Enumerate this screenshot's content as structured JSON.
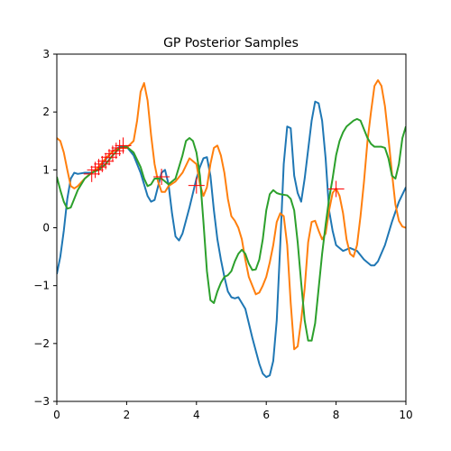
{
  "chart_data": {
    "type": "line",
    "title": "GP Posterior Samples",
    "xlabel": "",
    "ylabel": "",
    "xlim": [
      0,
      10
    ],
    "ylim": [
      -3,
      3
    ],
    "grid": false,
    "xticks": [
      0,
      2,
      4,
      6,
      8,
      10
    ],
    "xtick_labels": [
      "0",
      "2",
      "4",
      "6",
      "8",
      "10"
    ],
    "yticks": [
      -3,
      -2,
      -1,
      0,
      1,
      2,
      3
    ],
    "ytick_labels": [
      "−3",
      "−2",
      "−1",
      "0",
      "1",
      "2",
      "3"
    ],
    "series": [
      {
        "color": "#1f77b4",
        "x": [
          0,
          0.1,
          0.2,
          0.3,
          0.4,
          0.5,
          0.6,
          0.8,
          1.0,
          1.2,
          1.4,
          1.6,
          1.8,
          2.0,
          2.2,
          2.4,
          2.5,
          2.6,
          2.7,
          2.8,
          3.0,
          3.1,
          3.2,
          3.3,
          3.4,
          3.5,
          3.6,
          3.8,
          4.0,
          4.1,
          4.2,
          4.3,
          4.4,
          4.5,
          4.6,
          4.7,
          4.8,
          4.9,
          5.0,
          5.1,
          5.2,
          5.4,
          5.6,
          5.8,
          5.9,
          6.0,
          6.1,
          6.2,
          6.3,
          6.4,
          6.5,
          6.6,
          6.7,
          6.8,
          6.9,
          7.0,
          7.1,
          7.2,
          7.3,
          7.4,
          7.5,
          7.6,
          7.7,
          7.8,
          7.9,
          8.0,
          8.1,
          8.2,
          8.4,
          8.6,
          8.8,
          9.0,
          9.1,
          9.2,
          9.4,
          9.6,
          9.8,
          10.0
        ],
        "y": [
          -0.8,
          -0.5,
          -0.05,
          0.5,
          0.85,
          0.95,
          0.93,
          0.95,
          0.95,
          1.02,
          1.18,
          1.32,
          1.4,
          1.4,
          1.25,
          0.95,
          0.75,
          0.55,
          0.45,
          0.48,
          0.95,
          1.0,
          0.75,
          0.25,
          -0.15,
          -0.22,
          -0.1,
          0.35,
          0.85,
          1.05,
          1.2,
          1.22,
          0.9,
          0.3,
          -0.2,
          -0.55,
          -0.85,
          -1.1,
          -1.2,
          -1.22,
          -1.2,
          -1.4,
          -1.9,
          -2.35,
          -2.52,
          -2.58,
          -2.55,
          -2.3,
          -1.6,
          -0.3,
          1.1,
          1.75,
          1.72,
          0.9,
          0.6,
          0.45,
          0.85,
          1.35,
          1.85,
          2.18,
          2.15,
          1.85,
          1.2,
          0.3,
          -0.05,
          -0.3,
          -0.35,
          -0.4,
          -0.35,
          -0.4,
          -0.55,
          -0.65,
          -0.65,
          -0.58,
          -0.3,
          0.1,
          0.45,
          0.7
        ]
      },
      {
        "color": "#ff7f0e",
        "x": [
          0,
          0.1,
          0.2,
          0.3,
          0.4,
          0.5,
          0.6,
          0.8,
          1.0,
          1.2,
          1.4,
          1.6,
          1.8,
          2.0,
          2.2,
          2.3,
          2.4,
          2.5,
          2.6,
          2.7,
          2.8,
          2.9,
          3.0,
          3.1,
          3.2,
          3.4,
          3.6,
          3.8,
          4.0,
          4.1,
          4.2,
          4.3,
          4.4,
          4.5,
          4.6,
          4.7,
          4.8,
          4.9,
          5.0,
          5.1,
          5.2,
          5.3,
          5.4,
          5.5,
          5.6,
          5.7,
          5.8,
          5.9,
          6.0,
          6.1,
          6.2,
          6.3,
          6.4,
          6.5,
          6.6,
          6.7,
          6.8,
          6.9,
          7.0,
          7.1,
          7.2,
          7.3,
          7.4,
          7.5,
          7.6,
          7.7,
          7.8,
          7.9,
          8.0,
          8.1,
          8.2,
          8.3,
          8.4,
          8.5,
          8.6,
          8.7,
          8.8,
          8.9,
          9.0,
          9.1,
          9.2,
          9.3,
          9.4,
          9.5,
          9.6,
          9.7,
          9.8,
          9.9,
          10.0
        ],
        "y": [
          1.55,
          1.5,
          1.3,
          1.0,
          0.72,
          0.68,
          0.72,
          0.85,
          0.95,
          1.05,
          1.2,
          1.32,
          1.38,
          1.38,
          1.5,
          1.85,
          2.35,
          2.5,
          2.2,
          1.6,
          1.1,
          0.8,
          0.62,
          0.62,
          0.72,
          0.8,
          0.95,
          1.2,
          1.1,
          0.75,
          0.55,
          0.7,
          1.1,
          1.38,
          1.42,
          1.25,
          0.95,
          0.5,
          0.2,
          0.12,
          0.0,
          -0.2,
          -0.55,
          -0.85,
          -1.0,
          -1.15,
          -1.12,
          -1.0,
          -0.85,
          -0.6,
          -0.3,
          0.1,
          0.25,
          0.2,
          -0.3,
          -1.3,
          -2.1,
          -2.05,
          -1.6,
          -1.05,
          -0.25,
          0.1,
          0.12,
          -0.05,
          -0.2,
          -0.1,
          0.3,
          0.6,
          0.68,
          0.55,
          0.25,
          -0.2,
          -0.45,
          -0.5,
          -0.3,
          0.2,
          0.8,
          1.5,
          2.0,
          2.45,
          2.55,
          2.45,
          2.1,
          1.55,
          0.95,
          0.4,
          0.12,
          0.02,
          0.0
        ]
      },
      {
        "color": "#2ca02c",
        "x": [
          0,
          0.1,
          0.2,
          0.3,
          0.4,
          0.5,
          0.6,
          0.8,
          1.0,
          1.2,
          1.4,
          1.6,
          1.8,
          2.0,
          2.2,
          2.4,
          2.5,
          2.6,
          2.7,
          2.8,
          3.0,
          3.2,
          3.4,
          3.6,
          3.7,
          3.8,
          3.9,
          4.0,
          4.1,
          4.2,
          4.3,
          4.4,
          4.5,
          4.6,
          4.7,
          4.8,
          4.9,
          5.0,
          5.1,
          5.2,
          5.3,
          5.4,
          5.5,
          5.6,
          5.7,
          5.8,
          5.9,
          6.0,
          6.1,
          6.2,
          6.3,
          6.4,
          6.5,
          6.6,
          6.7,
          6.8,
          6.9,
          7.0,
          7.1,
          7.2,
          7.3,
          7.4,
          7.5,
          7.6,
          7.7,
          7.8,
          7.9,
          8.0,
          8.1,
          8.2,
          8.3,
          8.4,
          8.5,
          8.6,
          8.7,
          8.8,
          8.9,
          9.0,
          9.1,
          9.2,
          9.3,
          9.4,
          9.5,
          9.6,
          9.7,
          9.8,
          9.9,
          10.0
        ],
        "y": [
          0.88,
          0.65,
          0.45,
          0.33,
          0.35,
          0.5,
          0.65,
          0.85,
          0.95,
          1.0,
          1.1,
          1.25,
          1.38,
          1.4,
          1.3,
          1.05,
          0.85,
          0.72,
          0.75,
          0.85,
          0.85,
          0.75,
          0.85,
          1.25,
          1.5,
          1.55,
          1.5,
          1.3,
          0.9,
          0.1,
          -0.75,
          -1.25,
          -1.3,
          -1.1,
          -0.95,
          -0.85,
          -0.82,
          -0.75,
          -0.58,
          -0.45,
          -0.38,
          -0.45,
          -0.62,
          -0.73,
          -0.72,
          -0.55,
          -0.2,
          0.3,
          0.58,
          0.65,
          0.6,
          0.58,
          0.57,
          0.56,
          0.5,
          0.3,
          -0.25,
          -0.95,
          -1.6,
          -1.95,
          -1.95,
          -1.65,
          -1.05,
          -0.45,
          0.05,
          0.5,
          0.85,
          1.25,
          1.5,
          1.65,
          1.75,
          1.8,
          1.85,
          1.88,
          1.85,
          1.7,
          1.55,
          1.45,
          1.4,
          1.4,
          1.4,
          1.38,
          1.2,
          0.9,
          0.85,
          1.1,
          1.55,
          1.75
        ]
      }
    ],
    "observations": {
      "color": "#ff0000",
      "marker": "+",
      "x": [
        1.0,
        1.1,
        1.2,
        1.3,
        1.4,
        1.5,
        1.6,
        1.7,
        1.8,
        1.9,
        3.0,
        4.0,
        8.0
      ],
      "y": [
        0.93,
        1.0,
        1.05,
        1.1,
        1.15,
        1.22,
        1.28,
        1.33,
        1.38,
        1.42,
        0.88,
        0.73,
        0.67
      ]
    }
  }
}
